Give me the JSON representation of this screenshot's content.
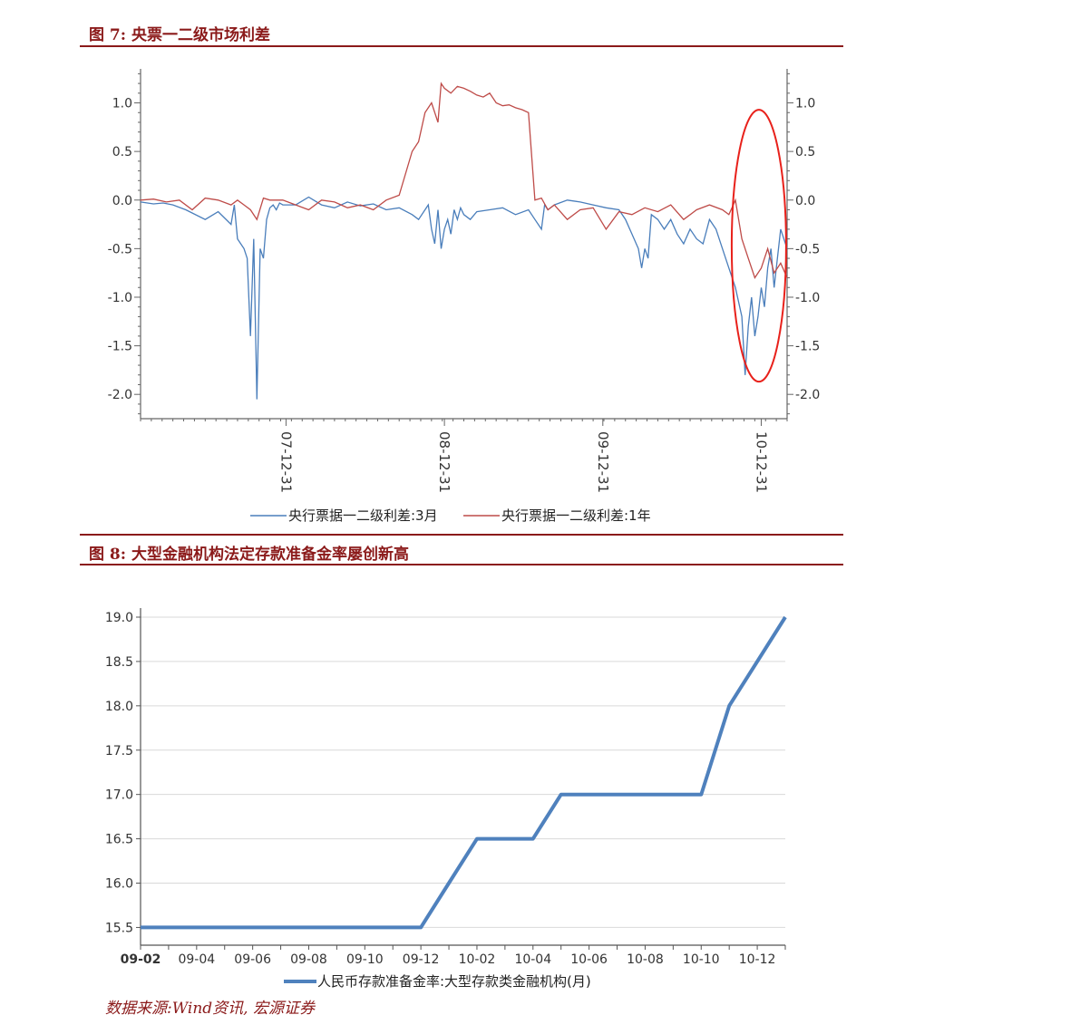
{
  "figure7": {
    "title": "图 7:  央票一二级市场利差",
    "chart_data": {
      "type": "line",
      "yticks": [
        "1.0",
        "0.5",
        "0.0",
        "-0.5",
        "-1.0",
        "-1.5",
        "-2.0"
      ],
      "ylim": [
        -2.25,
        1.35
      ],
      "xticks": [
        "07-12-31",
        "08-12-31",
        "09-12-31",
        "10-12-31"
      ],
      "series": [
        {
          "name": "央行票据一二级利差:3月",
          "color": "#4a7ebb",
          "x": [
            0,
            0.02,
            0.035,
            0.05,
            0.07,
            0.1,
            0.12,
            0.14,
            0.145,
            0.15,
            0.16,
            0.165,
            0.17,
            0.175,
            0.18,
            0.185,
            0.19,
            0.195,
            0.2,
            0.205,
            0.21,
            0.215,
            0.22,
            0.24,
            0.26,
            0.28,
            0.3,
            0.32,
            0.34,
            0.36,
            0.38,
            0.4,
            0.42,
            0.43,
            0.44,
            0.445,
            0.45,
            0.455,
            0.46,
            0.465,
            0.47,
            0.475,
            0.48,
            0.485,
            0.49,
            0.495,
            0.5,
            0.51,
            0.52,
            0.54,
            0.56,
            0.58,
            0.6,
            0.61,
            0.62,
            0.625,
            0.63,
            0.64,
            0.66,
            0.68,
            0.7,
            0.72,
            0.74,
            0.75,
            0.76,
            0.77,
            0.775,
            0.78,
            0.785,
            0.79,
            0.8,
            0.81,
            0.82,
            0.83,
            0.84,
            0.85,
            0.86,
            0.87,
            0.88,
            0.89,
            0.9,
            0.91,
            0.92,
            0.93,
            0.935,
            0.94,
            0.945,
            0.95,
            0.955,
            0.96,
            0.965,
            0.97,
            0.975,
            0.98,
            0.985,
            0.99,
            1.0
          ],
          "y": [
            -0.02,
            -0.04,
            -0.03,
            -0.05,
            -0.1,
            -0.2,
            -0.12,
            -0.25,
            -0.05,
            -0.4,
            -0.5,
            -0.6,
            -1.4,
            -0.4,
            -2.05,
            -0.5,
            -0.6,
            -0.2,
            -0.08,
            -0.05,
            -0.1,
            -0.03,
            -0.05,
            -0.05,
            0.03,
            -0.05,
            -0.08,
            -0.02,
            -0.06,
            -0.04,
            -0.1,
            -0.08,
            -0.15,
            -0.2,
            -0.1,
            -0.05,
            -0.3,
            -0.45,
            -0.1,
            -0.5,
            -0.3,
            -0.2,
            -0.35,
            -0.1,
            -0.2,
            -0.08,
            -0.15,
            -0.2,
            -0.12,
            -0.1,
            -0.08,
            -0.15,
            -0.1,
            -0.2,
            -0.3,
            -0.05,
            -0.1,
            -0.05,
            0.0,
            -0.02,
            -0.05,
            -0.08,
            -0.1,
            -0.2,
            -0.35,
            -0.5,
            -0.7,
            -0.5,
            -0.6,
            -0.15,
            -0.2,
            -0.3,
            -0.2,
            -0.35,
            -0.45,
            -0.3,
            -0.4,
            -0.45,
            -0.2,
            -0.3,
            -0.5,
            -0.7,
            -0.9,
            -1.2,
            -1.8,
            -1.3,
            -1.0,
            -1.4,
            -1.2,
            -0.9,
            -1.1,
            -0.7,
            -0.5,
            -0.9,
            -0.6,
            -0.3,
            -0.5
          ]
        },
        {
          "name": "央行票据一二级利差:1年",
          "color": "#be4b48",
          "x": [
            0,
            0.02,
            0.04,
            0.06,
            0.08,
            0.1,
            0.12,
            0.14,
            0.15,
            0.16,
            0.17,
            0.18,
            0.19,
            0.2,
            0.22,
            0.24,
            0.26,
            0.28,
            0.3,
            0.32,
            0.34,
            0.36,
            0.38,
            0.4,
            0.42,
            0.43,
            0.44,
            0.45,
            0.46,
            0.465,
            0.47,
            0.48,
            0.49,
            0.5,
            0.51,
            0.52,
            0.53,
            0.54,
            0.55,
            0.56,
            0.57,
            0.58,
            0.59,
            0.6,
            0.61,
            0.62,
            0.63,
            0.64,
            0.66,
            0.68,
            0.7,
            0.72,
            0.74,
            0.76,
            0.78,
            0.8,
            0.82,
            0.84,
            0.86,
            0.88,
            0.9,
            0.91,
            0.92,
            0.93,
            0.94,
            0.95,
            0.96,
            0.97,
            0.98,
            0.99,
            1.0
          ],
          "y": [
            0.0,
            0.01,
            -0.02,
            0.0,
            -0.1,
            0.02,
            0.0,
            -0.05,
            0.0,
            -0.05,
            -0.1,
            -0.2,
            0.02,
            0.0,
            0.0,
            -0.05,
            -0.1,
            0.0,
            -0.02,
            -0.08,
            -0.05,
            -0.1,
            0.0,
            0.05,
            0.5,
            0.6,
            0.9,
            1.0,
            0.8,
            1.2,
            1.15,
            1.1,
            1.17,
            1.15,
            1.12,
            1.08,
            1.06,
            1.1,
            1.0,
            0.97,
            0.98,
            0.95,
            0.93,
            0.9,
            0.0,
            0.02,
            -0.1,
            -0.05,
            -0.2,
            -0.1,
            -0.08,
            -0.3,
            -0.12,
            -0.15,
            -0.08,
            -0.12,
            -0.05,
            -0.2,
            -0.1,
            -0.05,
            -0.1,
            -0.15,
            0.0,
            -0.4,
            -0.6,
            -0.8,
            -0.7,
            -0.5,
            -0.75,
            -0.65,
            -0.8
          ]
        }
      ]
    }
  },
  "figure8": {
    "title": "图 8:  大型金融机构法定存款准备金率屡创新高",
    "chart_data": {
      "type": "line",
      "xticks": [
        "09-02",
        "09-04",
        "09-06",
        "09-08",
        "09-10",
        "09-12",
        "10-02",
        "10-04",
        "10-06",
        "10-08",
        "10-10",
        "10-12"
      ],
      "yticks": [
        "19.0",
        "18.5",
        "18.0",
        "17.5",
        "17.0",
        "16.5",
        "16.0",
        "15.5"
      ],
      "ylim": [
        15.3,
        19.0
      ],
      "series": [
        {
          "name": "人民币存款准备金率:大型存款类金融机构(月)",
          "color": "#4f81bd",
          "x": [
            "09-02",
            "09-03",
            "09-04",
            "09-05",
            "09-06",
            "09-07",
            "09-08",
            "09-09",
            "09-10",
            "09-11",
            "09-12",
            "10-01",
            "10-02",
            "10-03",
            "10-04",
            "10-05",
            "10-06",
            "10-07",
            "10-08",
            "10-09",
            "10-10",
            "10-11",
            "10-12",
            "11-01"
          ],
          "y": [
            15.5,
            15.5,
            15.5,
            15.5,
            15.5,
            15.5,
            15.5,
            15.5,
            15.5,
            15.5,
            15.5,
            16.0,
            16.5,
            16.5,
            16.5,
            17.0,
            17.0,
            17.0,
            17.0,
            17.0,
            17.0,
            18.0,
            18.5,
            19.0
          ]
        }
      ]
    }
  },
  "source": "数据来源:Wind资讯, 宏源证券"
}
